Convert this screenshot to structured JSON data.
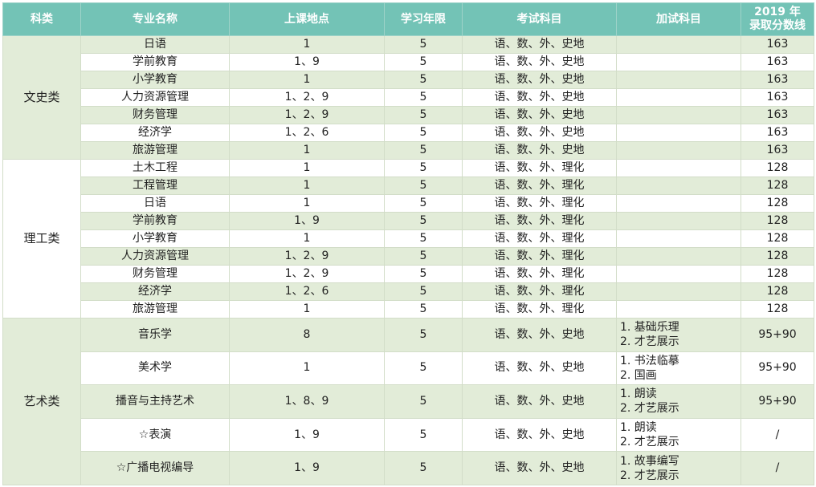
{
  "colors": {
    "header": "#73c3b6",
    "stripe": "#e2ecd8"
  },
  "headers": [
    "科类",
    "专业名称",
    "上课地点",
    "学习年限",
    "考试科目",
    "加试科目",
    "2019 年",
    "录取分数线"
  ],
  "groups": [
    {
      "category": "文史类",
      "rows": [
        {
          "major": "日语",
          "location": "1",
          "years": "5",
          "subjects": "语、数、外、史地",
          "score": "163"
        },
        {
          "major": "学前教育",
          "location": "1、9",
          "years": "5",
          "subjects": "语、数、外、史地",
          "score": "163"
        },
        {
          "major": "小学教育",
          "location": "1",
          "years": "5",
          "subjects": "语、数、外、史地",
          "score": "163"
        },
        {
          "major": "人力资源管理",
          "location": "1、2、9",
          "years": "5",
          "subjects": "语、数、外、史地",
          "score": "163"
        },
        {
          "major": "财务管理",
          "location": "1、2、9",
          "years": "5",
          "subjects": "语、数、外、史地",
          "score": "163"
        },
        {
          "major": "经济学",
          "location": "1、2、6",
          "years": "5",
          "subjects": "语、数、外、史地",
          "score": "163"
        },
        {
          "major": "旅游管理",
          "location": "1",
          "years": "5",
          "subjects": "语、数、外、史地",
          "score": "163"
        }
      ]
    },
    {
      "category": "理工类",
      "rows": [
        {
          "major": "土木工程",
          "location": "1",
          "years": "5",
          "subjects": "语、数、外、理化",
          "score": "128"
        },
        {
          "major": "工程管理",
          "location": "1",
          "years": "5",
          "subjects": "语、数、外、理化",
          "score": "128"
        },
        {
          "major": "日语",
          "location": "1",
          "years": "5",
          "subjects": "语、数、外、理化",
          "score": "128"
        },
        {
          "major": "学前教育",
          "location": "1、9",
          "years": "5",
          "subjects": "语、数、外、理化",
          "score": "128"
        },
        {
          "major": "小学教育",
          "location": "1",
          "years": "5",
          "subjects": "语、数、外、理化",
          "score": "128"
        },
        {
          "major": "人力资源管理",
          "location": "1、2、9",
          "years": "5",
          "subjects": "语、数、外、理化",
          "score": "128"
        },
        {
          "major": "财务管理",
          "location": "1、2、9",
          "years": "5",
          "subjects": "语、数、外、理化",
          "score": "128"
        },
        {
          "major": "经济学",
          "location": "1、2、6",
          "years": "5",
          "subjects": "语、数、外、理化",
          "score": "128"
        },
        {
          "major": "旅游管理",
          "location": "1",
          "years": "5",
          "subjects": "语、数、外、理化",
          "score": "128"
        }
      ]
    },
    {
      "category": "艺术类",
      "rows": [
        {
          "major": "音乐学",
          "location": "8",
          "years": "5",
          "subjects": "语、数、外、史地",
          "extra": [
            "1. 基础乐理",
            "2. 才艺展示"
          ],
          "score": "95+90"
        },
        {
          "major": "美术学",
          "location": "1",
          "years": "5",
          "subjects": "语、数、外、史地",
          "extra": [
            "1. 书法临摹",
            "2. 国画"
          ],
          "score": "95+90"
        },
        {
          "major": "播音与主持艺术",
          "location": "1、8、9",
          "years": "5",
          "subjects": "语、数、外、史地",
          "extra": [
            "1. 朗读",
            "2. 才艺展示"
          ],
          "score": "95+90"
        },
        {
          "major": "☆表演",
          "location": "1、9",
          "years": "5",
          "subjects": "语、数、外、史地",
          "extra": [
            "1. 朗读",
            "2. 才艺展示"
          ],
          "score": "/"
        },
        {
          "major": "☆广播电视编导",
          "location": "1、9",
          "years": "5",
          "subjects": "语、数、外、史地",
          "extra": [
            "1. 故事编写",
            "2. 才艺展示"
          ],
          "score": "/"
        }
      ]
    }
  ]
}
